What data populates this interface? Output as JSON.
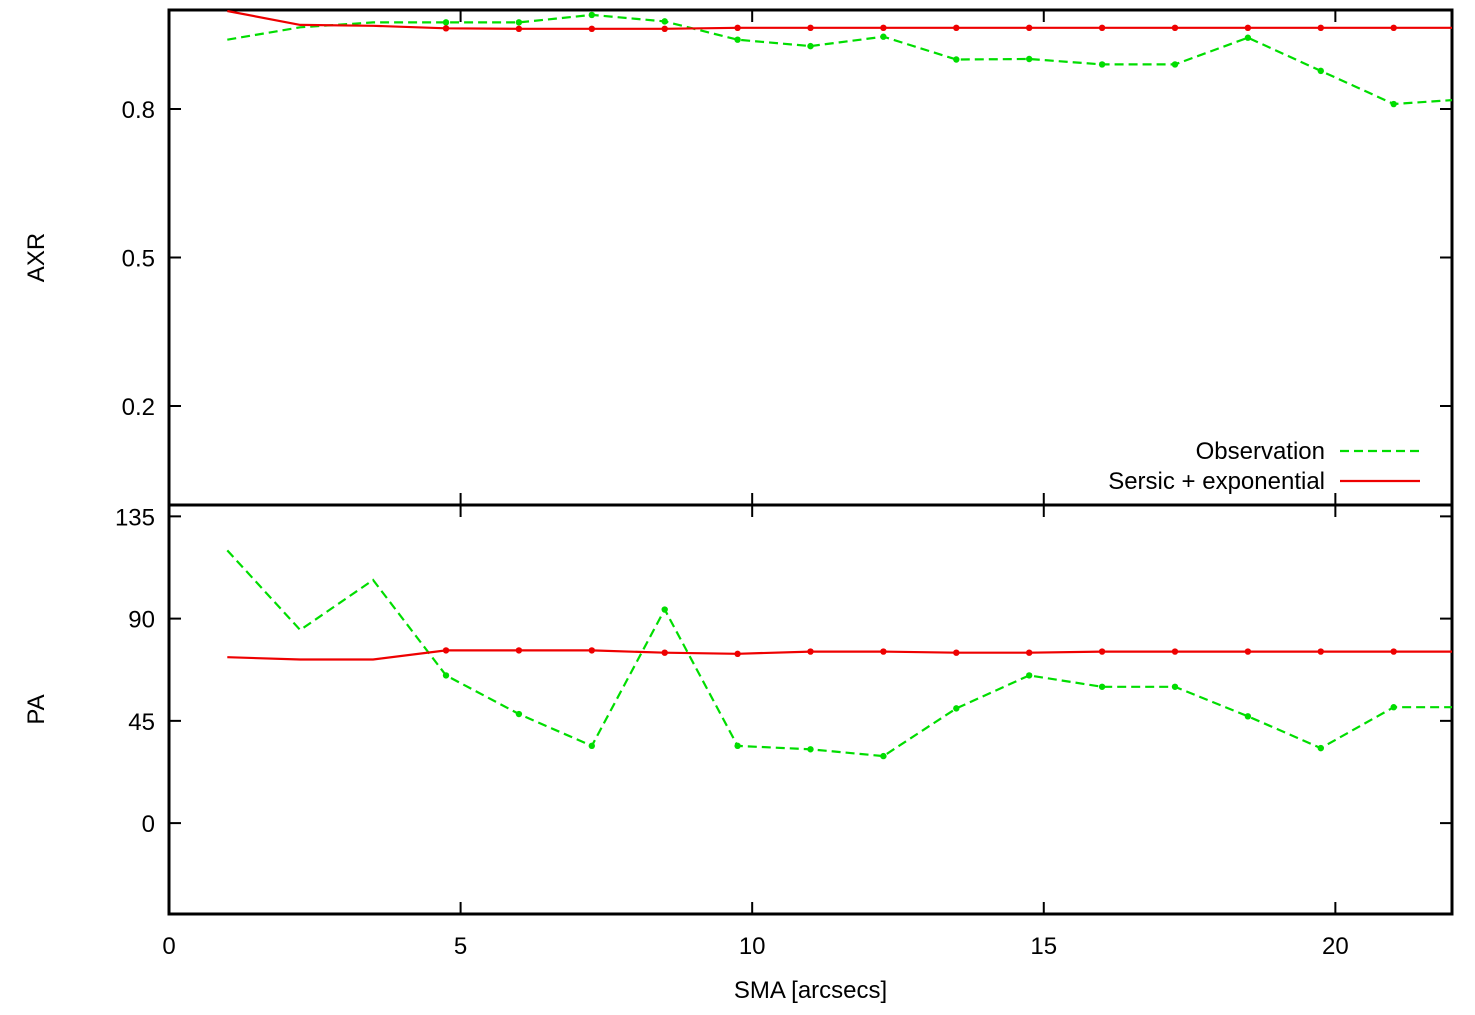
{
  "chart_data": [
    {
      "type": "line",
      "ylabel": "AXR",
      "xlim": [
        0,
        22
      ],
      "ylim": [
        0,
        1
      ],
      "yticks": [
        0.2,
        0.5,
        0.8
      ],
      "ytick_labels": [
        "0.2",
        "0.5",
        "0.8"
      ],
      "xticks": [
        0,
        5,
        10,
        15,
        20
      ],
      "legend": {
        "position": "bottom-right",
        "entries": [
          "Observation",
          "Sersic + exponential"
        ]
      },
      "grid": false,
      "series": [
        {
          "name": "Observation",
          "style": "dashed",
          "color": "#00dd00",
          "x": [
            1.0,
            2.25,
            3.5,
            4.75,
            6.0,
            7.25,
            8.5,
            9.75,
            11.0,
            12.25,
            13.5,
            14.75,
            16.0,
            17.25,
            18.5,
            19.75,
            21.0,
            22.0
          ],
          "y": [
            0.94,
            0.965,
            0.975,
            0.975,
            0.975,
            0.99,
            0.977,
            0.94,
            0.927,
            0.946,
            0.9,
            0.901,
            0.89,
            0.89,
            0.944,
            0.877,
            0.81,
            0.818
          ]
        },
        {
          "name": "Sersic + exponential",
          "style": "solid",
          "color": "#ee0000",
          "x": [
            1.0,
            2.25,
            3.5,
            4.75,
            6.0,
            7.25,
            8.5,
            9.75,
            11.0,
            12.25,
            13.5,
            14.75,
            16.0,
            17.25,
            18.5,
            19.75,
            21.0,
            22.0
          ],
          "y": [
            0.998,
            0.97,
            0.968,
            0.963,
            0.962,
            0.962,
            0.962,
            0.964,
            0.964,
            0.964,
            0.964,
            0.964,
            0.964,
            0.964,
            0.964,
            0.964,
            0.964,
            0.964
          ]
        }
      ]
    },
    {
      "type": "line",
      "ylabel": "PA",
      "xlabel": "SMA [arcsecs]",
      "xlim": [
        0,
        22
      ],
      "ylim": [
        -40,
        140
      ],
      "yticks": [
        0,
        45,
        90,
        135
      ],
      "ytick_labels": [
        "0",
        "45",
        "90",
        "135"
      ],
      "xticks": [
        0,
        5,
        10,
        15,
        20
      ],
      "xtick_labels": [
        "0",
        "5",
        "10",
        "15",
        "20"
      ],
      "grid": false,
      "series": [
        {
          "name": "Observation",
          "style": "dashed",
          "color": "#00dd00",
          "x": [
            1.0,
            2.25,
            3.5,
            4.75,
            6.0,
            7.25,
            8.5,
            9.75,
            11.0,
            12.25,
            13.5,
            14.75,
            16.0,
            17.25,
            18.5,
            19.75,
            21.0,
            22.0
          ],
          "y": [
            120,
            85,
            107,
            65,
            48,
            34,
            94,
            34,
            32.5,
            29.5,
            50.5,
            65,
            60,
            60,
            47,
            33,
            51,
            51
          ]
        },
        {
          "name": "Sersic + exponential",
          "style": "solid",
          "color": "#ee0000",
          "x": [
            1.0,
            2.25,
            3.5,
            4.75,
            6.0,
            7.25,
            8.5,
            9.75,
            11.0,
            12.25,
            13.5,
            14.75,
            16.0,
            17.25,
            18.5,
            19.75,
            21.0,
            22.0
          ],
          "y": [
            73,
            72,
            72,
            76,
            76,
            76,
            75,
            74.5,
            75.5,
            75.5,
            75,
            75,
            75.5,
            75.5,
            75.5,
            75.5,
            75.5,
            75.5
          ]
        }
      ]
    }
  ]
}
